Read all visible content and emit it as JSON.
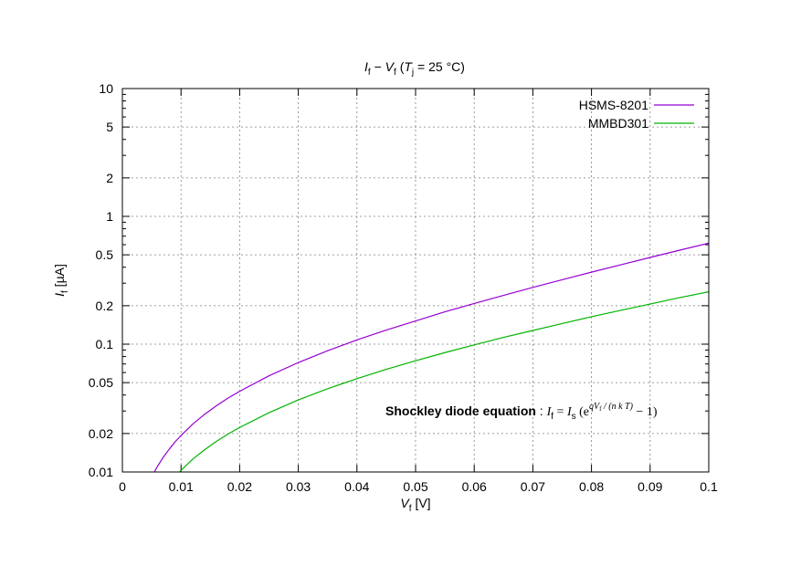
{
  "chart_data": {
    "type": "line",
    "title": {
      "I": "I",
      "f_sub": "f",
      "dash": "−",
      "V": "V",
      "paren_open": "(",
      "T": "T",
      "j_sub": "j",
      "rest": "= 25 °C)"
    },
    "xlabel": {
      "sym": "V",
      "sub": "f",
      "unit": "[V]"
    },
    "ylabel": {
      "sym": "I",
      "sub": "f",
      "unit": "[µA]"
    },
    "xlim": [
      0,
      0.1
    ],
    "ylim": [
      0.01,
      10
    ],
    "yscale": "log",
    "grid": true,
    "legend_position": "top-right",
    "x_ticks": [
      0,
      0.01,
      0.02,
      0.03,
      0.04,
      0.05,
      0.06,
      0.07,
      0.08,
      0.09,
      0.1
    ],
    "x_tick_labels": [
      "0",
      "0.01",
      "0.02",
      "0.03",
      "0.04",
      "0.05",
      "0.06",
      "0.07",
      "0.08",
      "0.09",
      "0.1"
    ],
    "y_ticks": [
      0.01,
      0.02,
      0.05,
      0.1,
      0.2,
      0.5,
      1,
      2,
      5,
      10
    ],
    "y_tick_labels": [
      "0.01",
      "0.02",
      "0.05",
      "0.1",
      "0.2",
      "0.5",
      "1",
      "2",
      "5",
      "10"
    ],
    "series": [
      {
        "name": "HSMS-8201",
        "color": "#9400d3",
        "x": [
          0.0055,
          0.006,
          0.007,
          0.008,
          0.009,
          0.01,
          0.012,
          0.014,
          0.016,
          0.018,
          0.02,
          0.025,
          0.03,
          0.035,
          0.04,
          0.045,
          0.05,
          0.055,
          0.06,
          0.065,
          0.07,
          0.075,
          0.08,
          0.085,
          0.09,
          0.095,
          0.1
        ],
        "y": [
          0.0101,
          0.0111,
          0.0131,
          0.0151,
          0.0172,
          0.0193,
          0.0237,
          0.0282,
          0.0329,
          0.0378,
          0.0428,
          0.0565,
          0.0718,
          0.0888,
          0.108,
          0.129,
          0.152,
          0.179,
          0.208,
          0.241,
          0.278,
          0.319,
          0.366,
          0.418,
          0.477,
          0.543,
          0.617
        ]
      },
      {
        "name": "MMBD301",
        "color": "#00b400",
        "x": [
          0.0098,
          0.01,
          0.012,
          0.014,
          0.016,
          0.018,
          0.02,
          0.025,
          0.03,
          0.035,
          0.04,
          0.045,
          0.05,
          0.055,
          0.06,
          0.065,
          0.07,
          0.075,
          0.08,
          0.085,
          0.09,
          0.095,
          0.1
        ],
        "y": [
          0.0101,
          0.0103,
          0.0126,
          0.0149,
          0.0173,
          0.0198,
          0.0223,
          0.0291,
          0.0366,
          0.0448,
          0.0537,
          0.0635,
          0.0742,
          0.0859,
          0.0987,
          0.113,
          0.128,
          0.145,
          0.164,
          0.184,
          0.206,
          0.231,
          0.257
        ]
      }
    ],
    "annotation": {
      "label": "Shockley diode equation",
      "colon": " : ",
      "I": "I",
      "f": "f",
      "eq": " = ",
      "Is": "I",
      "s": "s",
      "paren": " (e",
      "exponent": "qV",
      "exp_sub": "f",
      "exp_rest": " / (n k T)",
      "tail": " − 1)"
    }
  }
}
